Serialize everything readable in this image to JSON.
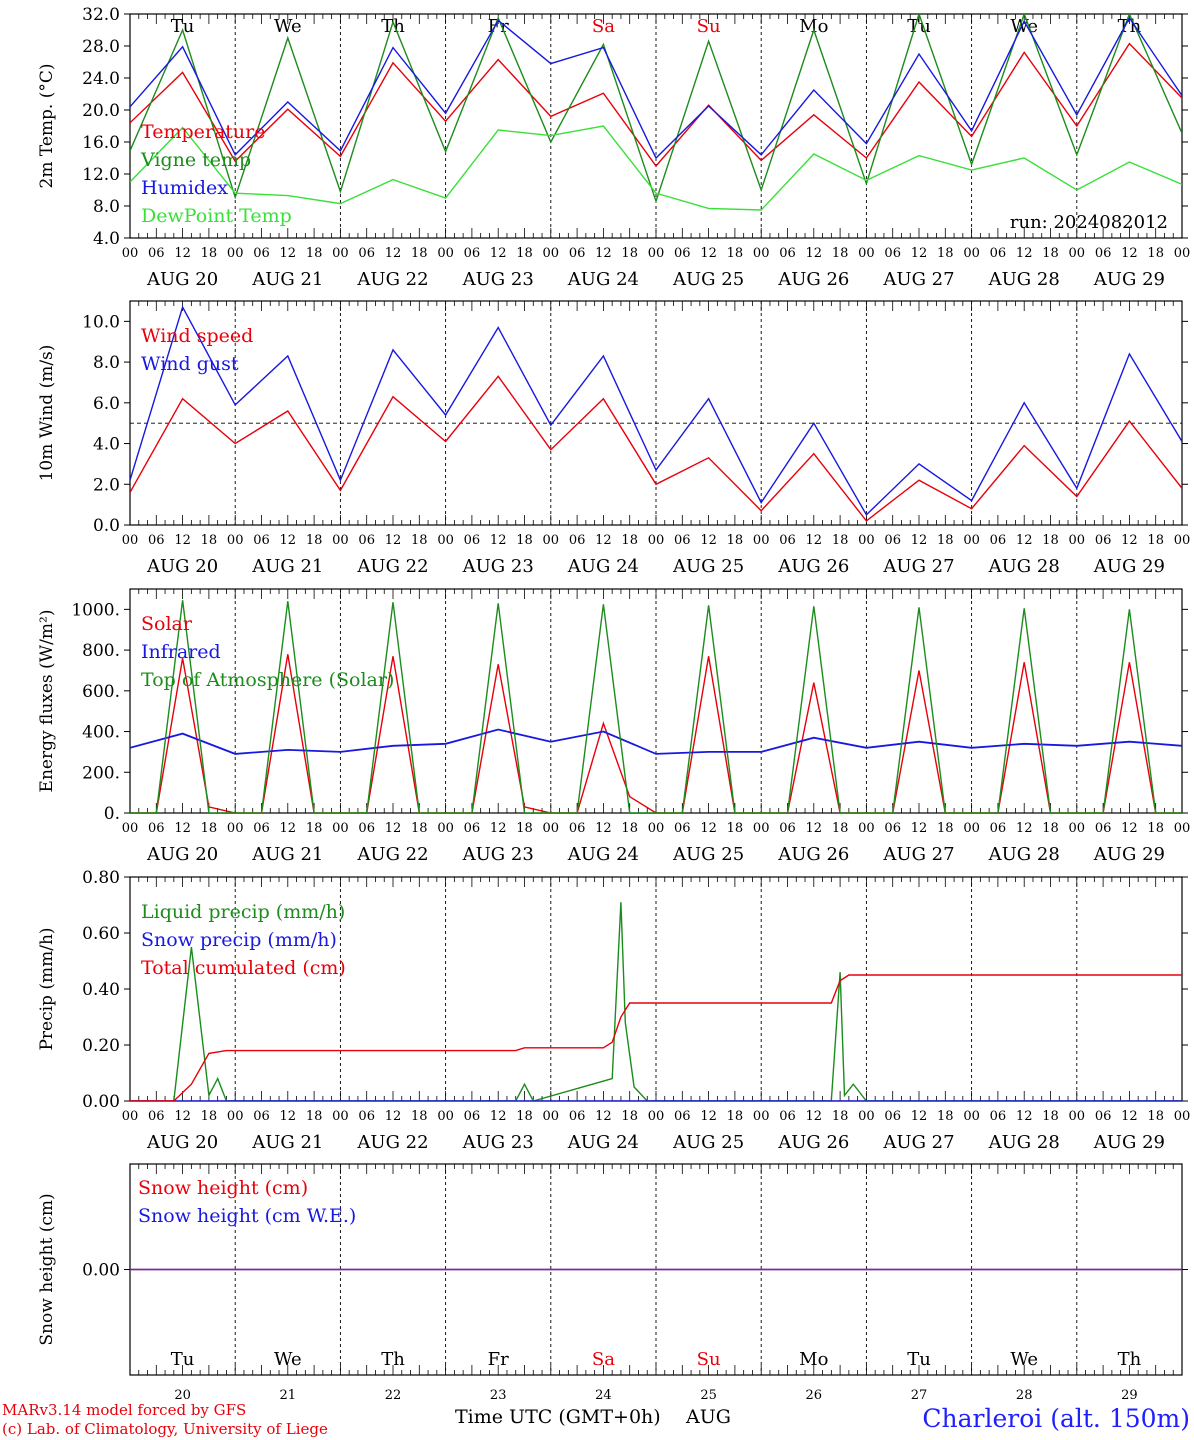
{
  "run_label": "run: 2024082012",
  "location": "Charleroi (alt. 150m)",
  "credit_lines": [
    "MARv3.14 model forced by GFS",
    "(c) Lab. of Climatology, University of Liege"
  ],
  "xaxis_label": "Time UTC (GMT+0h)",
  "month_label": "AUG",
  "days": [
    "AUG 20",
    "AUG 21",
    "AUG 22",
    "AUG 23",
    "AUG 24",
    "AUG 25",
    "AUG 26",
    "AUG 27",
    "AUG 28",
    "AUG 29"
  ],
  "day_numbers": [
    "20",
    "21",
    "22",
    "23",
    "24",
    "25",
    "26",
    "27",
    "28",
    "29"
  ],
  "weekdays": [
    "Tu",
    "We",
    "Th",
    "Fr",
    "Sa",
    "Su",
    "Mo",
    "Tu",
    "We",
    "Th"
  ],
  "weekend_color": "#e8000b",
  "weekend_flags": [
    false,
    false,
    false,
    false,
    true,
    true,
    false,
    false,
    false,
    false
  ],
  "hour_ticks": [
    "00",
    "06",
    "12",
    "18"
  ],
  "colors": {
    "red": "#e8000b",
    "blue": "#1818e0",
    "green": "#1c8c1c",
    "lightgreen": "#38e038",
    "purple": "#7a2a9a"
  },
  "chart_data": [
    {
      "id": "temp",
      "type": "line",
      "ylabel": "2m Temp. (°C)",
      "ylim": [
        4.0,
        32.0
      ],
      "yticks": [
        "32.0",
        "28.0",
        "24.0",
        "20.0",
        "16.0",
        "12.0",
        "8.0",
        "4.0"
      ],
      "ref_line": null,
      "show_weekdays": true,
      "x_hours": [
        0,
        12,
        24,
        36,
        48,
        60,
        72,
        84,
        96,
        108,
        120,
        132,
        144,
        156,
        168,
        180,
        192,
        204,
        216,
        228,
        240
      ],
      "series": [
        {
          "name": "Temperature",
          "color": "red",
          "values": [
            18.4,
            24.7,
            13.6,
            20.1,
            14.2,
            25.9,
            18.6,
            26.3,
            19.2,
            22.1,
            13.0,
            20.6,
            13.7,
            19.4,
            14.0,
            23.5,
            16.7,
            27.2,
            18.0,
            28.3,
            21.5
          ]
        },
        {
          "name": "Vigne temp",
          "color": "green",
          "values": [
            14.9,
            30.0,
            9.1,
            29.0,
            9.8,
            31.0,
            14.8,
            31.5,
            16.0,
            28.2,
            8.6,
            28.6,
            10.0,
            30.0,
            10.8,
            32.0,
            13.2,
            32.0,
            14.4,
            32.0,
            17.1
          ]
        },
        {
          "name": "Humidex",
          "color": "blue",
          "values": [
            20.4,
            27.9,
            14.4,
            21.0,
            14.9,
            27.8,
            19.6,
            31.2,
            25.8,
            27.8,
            14.0,
            20.5,
            14.4,
            22.5,
            15.8,
            27.0,
            17.4,
            31.1,
            19.4,
            31.5,
            21.8
          ]
        },
        {
          "name": "DewPoint Temp",
          "color": "lightgreen",
          "values": [
            11.0,
            17.8,
            9.6,
            9.3,
            8.3,
            11.3,
            9.0,
            17.5,
            16.8,
            18.0,
            9.6,
            7.7,
            7.5,
            14.5,
            11.2,
            14.3,
            12.5,
            14.0,
            10.0,
            13.5,
            10.7
          ]
        }
      ]
    },
    {
      "id": "wind",
      "type": "line",
      "ylabel": "10m Wind (m/s)",
      "ylim": [
        0.0,
        11.0
      ],
      "yticks": [
        "10.0",
        "8.0",
        "6.0",
        "4.0",
        "2.0",
        "0.0"
      ],
      "ref_line": 5.0,
      "show_weekdays": false,
      "x_hours": [
        0,
        12,
        24,
        36,
        48,
        60,
        72,
        84,
        96,
        108,
        120,
        132,
        144,
        156,
        168,
        180,
        192,
        204,
        216,
        228,
        240
      ],
      "series": [
        {
          "name": "Wind speed",
          "color": "red",
          "values": [
            1.6,
            6.2,
            4.0,
            5.6,
            1.7,
            6.3,
            4.1,
            7.3,
            3.7,
            6.2,
            2.0,
            3.3,
            0.7,
            3.5,
            0.2,
            2.2,
            0.8,
            3.9,
            1.4,
            5.1,
            1.8
          ]
        },
        {
          "name": "Wind gust",
          "color": "blue",
          "values": [
            2.2,
            10.7,
            5.9,
            8.3,
            2.2,
            8.6,
            5.4,
            9.7,
            4.9,
            8.3,
            2.7,
            6.2,
            1.1,
            5.0,
            0.5,
            3.0,
            1.2,
            6.0,
            1.8,
            8.4,
            4.1
          ]
        }
      ]
    },
    {
      "id": "energy",
      "type": "line",
      "ylabel": "Energy fluxes (W/m²)",
      "ylim": [
        0.0,
        1100.0
      ],
      "yticks": [
        "1000.",
        "800.",
        "600.",
        "400.",
        "200.",
        "0."
      ],
      "ref_line": null,
      "show_weekdays": false,
      "series": [
        {
          "name": "Solar",
          "color": "red",
          "x_hours": [
            0,
            6,
            12,
            18,
            24,
            30,
            36,
            42,
            48,
            54,
            60,
            66,
            72,
            78,
            84,
            90,
            96,
            102,
            108,
            114,
            120,
            126,
            132,
            138,
            144,
            150,
            156,
            162,
            168,
            174,
            180,
            186,
            192,
            198,
            204,
            210,
            216,
            222,
            228,
            234,
            240
          ],
          "values": [
            0,
            0,
            760,
            30,
            0,
            0,
            780,
            0,
            0,
            0,
            770,
            0,
            0,
            0,
            730,
            30,
            0,
            0,
            440,
            80,
            0,
            0,
            770,
            0,
            0,
            0,
            640,
            0,
            0,
            0,
            700,
            0,
            0,
            0,
            740,
            0,
            0,
            0,
            740,
            0,
            0
          ]
        },
        {
          "name": "Infrared",
          "color": "blue",
          "x_hours": [
            0,
            12,
            24,
            36,
            48,
            60,
            72,
            84,
            96,
            108,
            120,
            132,
            144,
            156,
            168,
            180,
            192,
            204,
            216,
            228,
            240
          ],
          "values": [
            320,
            390,
            290,
            310,
            300,
            330,
            340,
            410,
            350,
            400,
            290,
            300,
            300,
            370,
            320,
            350,
            320,
            340,
            330,
            350,
            330
          ]
        },
        {
          "name": "Top of Atmosphere (Solar)",
          "color": "green",
          "x_hours": [
            0,
            6,
            12,
            18,
            24,
            30,
            36,
            42,
            48,
            54,
            60,
            66,
            72,
            78,
            84,
            90,
            96,
            102,
            108,
            114,
            120,
            126,
            132,
            138,
            144,
            150,
            156,
            162,
            168,
            174,
            180,
            186,
            192,
            198,
            204,
            210,
            216,
            222,
            228,
            234,
            240
          ],
          "values": [
            0,
            0,
            1045,
            0,
            0,
            0,
            1040,
            0,
            0,
            0,
            1035,
            0,
            0,
            0,
            1030,
            0,
            0,
            0,
            1025,
            0,
            0,
            0,
            1020,
            0,
            0,
            0,
            1015,
            0,
            0,
            0,
            1010,
            0,
            0,
            0,
            1005,
            0,
            0,
            0,
            1000,
            0,
            0
          ]
        }
      ]
    },
    {
      "id": "precip",
      "type": "line",
      "ylabel": "Precip (mm/h)",
      "ylim": [
        0.0,
        0.8
      ],
      "yticks": [
        "0.80",
        "0.60",
        "0.40",
        "0.20",
        "0.00"
      ],
      "ref_line": null,
      "show_weekdays": false,
      "series": [
        {
          "name": "Liquid precip (mm/h)",
          "color": "green",
          "x_hours": [
            0,
            10,
            14,
            18,
            20,
            22,
            24,
            88,
            90,
            92,
            110,
            112,
            113,
            115,
            118,
            160,
            162,
            163,
            165,
            168,
            240
          ],
          "values": [
            0,
            0,
            0.55,
            0.02,
            0.08,
            0,
            0,
            0,
            0.06,
            0,
            0.08,
            0.71,
            0.28,
            0.05,
            0,
            0,
            0.46,
            0.02,
            0.06,
            0,
            0
          ]
        },
        {
          "name": "Snow precip (mm/h)",
          "color": "blue",
          "x_hours": [
            0,
            240
          ],
          "values": [
            0,
            0
          ]
        },
        {
          "name": "Total cumulated (cm)",
          "color": "red",
          "x_hours": [
            0,
            10,
            14,
            18,
            22,
            24,
            88,
            90,
            92,
            108,
            110,
            112,
            114,
            116,
            160,
            162,
            164,
            240
          ],
          "values": [
            0,
            0,
            0.06,
            0.17,
            0.18,
            0.18,
            0.18,
            0.19,
            0.19,
            0.19,
            0.21,
            0.3,
            0.35,
            0.35,
            0.35,
            0.43,
            0.45,
            0.45
          ]
        }
      ]
    },
    {
      "id": "snow",
      "type": "line",
      "ylabel": "Snow height (cm)",
      "ylim": [
        -1.0,
        1.0
      ],
      "yticks": [
        "0.00"
      ],
      "ref_line": null,
      "show_weekdays": true,
      "x_hours": [
        0,
        240
      ],
      "series": [
        {
          "name": "Snow height (cm)",
          "color": "red",
          "values": [
            0,
            0
          ]
        },
        {
          "name": "Snow height (cm W.E.)",
          "color": "blue",
          "values": [
            0,
            0
          ]
        }
      ]
    }
  ]
}
